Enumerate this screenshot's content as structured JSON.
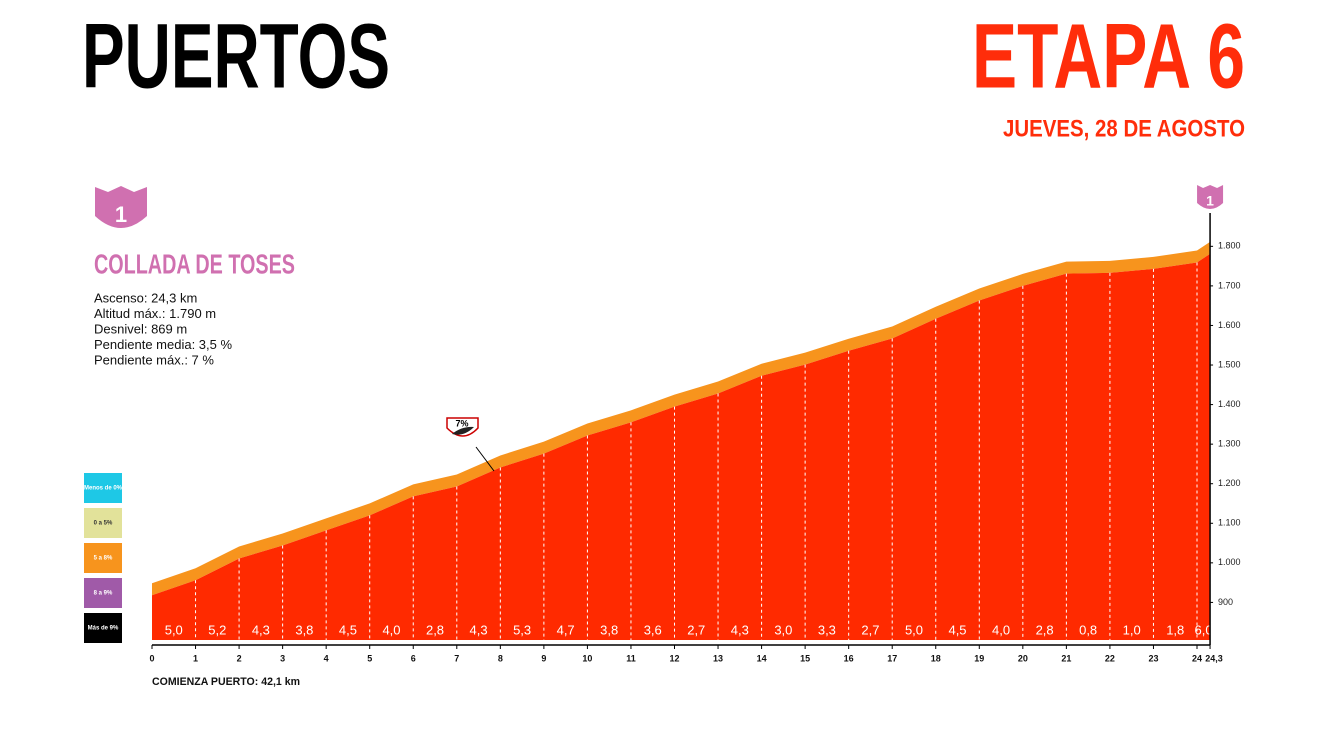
{
  "header": {
    "title": "PUERTOS",
    "stage": "ETAPA 6",
    "date": "JUEVES, 28 DE AGOSTO"
  },
  "climb": {
    "number": "1",
    "name": "COLLADA DE TOSES",
    "stats": [
      "Ascenso: 24,3 km",
      "Altitud máx.: 1.790 m",
      "Desnivel: 869 m",
      "Pendiente media: 3,5 %",
      "Pendiente máx.: 7 %"
    ]
  },
  "legend": [
    {
      "label": "Menos de 0%",
      "color": "#1ec8e6"
    },
    {
      "label": "0 a 5%",
      "color": "#e2e29a"
    },
    {
      "label": "5 a 8%",
      "color": "#f7941d"
    },
    {
      "label": "8 a 9%",
      "color": "#a05aa8"
    },
    {
      "label": "Más de 9%",
      "color": "#000000"
    }
  ],
  "chart_data": {
    "type": "area",
    "color": "#ff2a00",
    "band_color": "#f7941d",
    "x": [
      0,
      1,
      2,
      3,
      4,
      5,
      6,
      7,
      8,
      9,
      10,
      11,
      12,
      13,
      14,
      15,
      16,
      17,
      18,
      19,
      20,
      21,
      22,
      23,
      24,
      24.3
    ],
    "values": [
      918,
      956,
      1011,
      1044,
      1082,
      1120,
      1168,
      1193,
      1241,
      1276,
      1322,
      1355,
      1395,
      1428,
      1473,
      1501,
      1536,
      1567,
      1617,
      1663,
      1700,
      1731,
      1733,
      1743,
      1759,
      1781
    ],
    "gradients": [
      5.0,
      5.2,
      4.3,
      3.8,
      4.5,
      4.0,
      2.8,
      4.3,
      5.3,
      4.7,
      3.8,
      3.6,
      2.7,
      4.3,
      3.0,
      3.3,
      2.7,
      5.0,
      4.5,
      4.0,
      2.8,
      0.8,
      1.0,
      1.8,
      6.0
    ],
    "gradient_labels": [
      "5,0",
      "5,2",
      "4,3",
      "3,8",
      "4,5",
      "4,0",
      "2,8",
      "4,3",
      "5,3",
      "4,7",
      "3,8",
      "3,6",
      "2,7",
      "4,3",
      "3,0",
      "3,3",
      "2,7",
      "5,0",
      "4,5",
      "4,0",
      "2,8",
      "0,8",
      "1,0",
      "1,8",
      "6,0"
    ],
    "xlim": [
      0,
      24.3
    ],
    "xticks": [
      0,
      1,
      2,
      3,
      4,
      5,
      6,
      7,
      8,
      9,
      10,
      11,
      12,
      13,
      14,
      15,
      16,
      17,
      18,
      19,
      20,
      21,
      22,
      23,
      24,
      {
        "value": 24.3,
        "label": "24,3"
      }
    ],
    "ylim": [
      805,
      1955
    ],
    "yticks": [
      900,
      {
        "value": 1000,
        "label": "1.000"
      },
      {
        "value": 1100,
        "label": "1.100"
      },
      {
        "value": 1200,
        "label": "1.200"
      },
      {
        "value": 1300,
        "label": "1.300"
      },
      {
        "value": 1400,
        "label": "1.400"
      },
      {
        "value": 1500,
        "label": "1.500"
      },
      {
        "value": 1600,
        "label": "1.600"
      },
      {
        "value": 1700,
        "label": "1.700"
      },
      {
        "value": 1800,
        "label": "1.800"
      }
    ],
    "annotation": "7%",
    "footnote": "COMIENZA PUERTO: 42,1 km"
  }
}
